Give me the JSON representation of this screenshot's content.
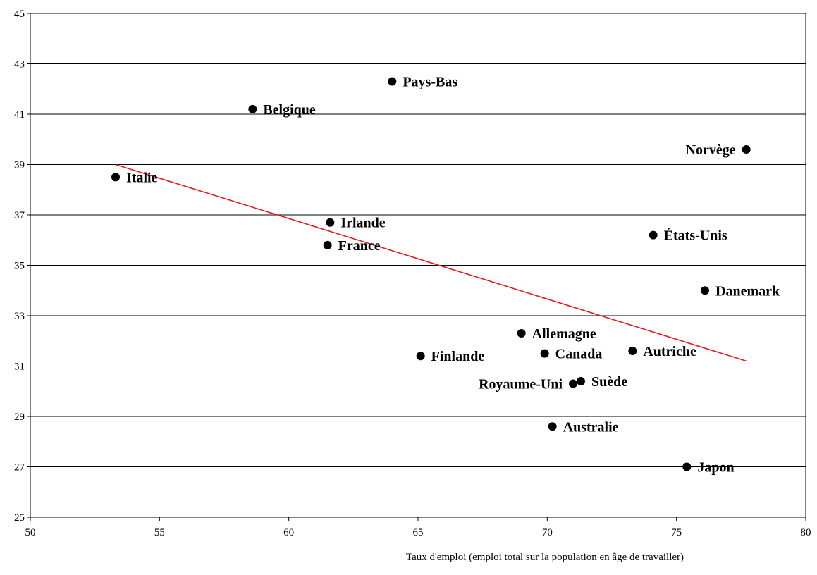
{
  "chart_data": {
    "type": "scatter",
    "title": "",
    "xlabel": "Taux d'emploi (emploi total sur la population en âge de travailler)",
    "ylabel": "",
    "xlim": [
      50,
      80
    ],
    "ylim": [
      25,
      45
    ],
    "xticks": [
      50,
      55,
      60,
      65,
      70,
      75,
      80
    ],
    "yticks": [
      25,
      27,
      29,
      31,
      33,
      35,
      37,
      39,
      41,
      43,
      45
    ],
    "grid": "horizontal",
    "points": [
      {
        "label": "Italie",
        "x": 53.3,
        "y": 38.5,
        "label_side": "right"
      },
      {
        "label": "Belgique",
        "x": 58.6,
        "y": 41.2,
        "label_side": "right"
      },
      {
        "label": "Pays-Bas",
        "x": 64.0,
        "y": 42.3,
        "label_side": "right"
      },
      {
        "label": "Irlande",
        "x": 61.6,
        "y": 36.7,
        "label_side": "right"
      },
      {
        "label": "France",
        "x": 61.5,
        "y": 35.8,
        "label_side": "right"
      },
      {
        "label": "Norvège",
        "x": 77.7,
        "y": 39.6,
        "label_side": "left"
      },
      {
        "label": "États-Unis",
        "x": 74.1,
        "y": 36.2,
        "label_side": "right"
      },
      {
        "label": "Danemark",
        "x": 76.1,
        "y": 34.0,
        "label_side": "right"
      },
      {
        "label": "Allemagne",
        "x": 69.0,
        "y": 32.3,
        "label_side": "right"
      },
      {
        "label": "Canada",
        "x": 69.9,
        "y": 31.5,
        "label_side": "right"
      },
      {
        "label": "Autriche",
        "x": 73.3,
        "y": 31.6,
        "label_side": "right"
      },
      {
        "label": "Finlande",
        "x": 65.1,
        "y": 31.4,
        "label_side": "right"
      },
      {
        "label": "Royaume-Uni",
        "x": 71.0,
        "y": 30.3,
        "label_side": "left"
      },
      {
        "label": "Suède",
        "x": 71.3,
        "y": 30.4,
        "label_side": "right"
      },
      {
        "label": "Australie",
        "x": 70.2,
        "y": 28.6,
        "label_side": "right"
      },
      {
        "label": "Japon",
        "x": 75.4,
        "y": 27.0,
        "label_side": "right"
      }
    ],
    "trendline": {
      "x": [
        53.3,
        77.7
      ],
      "y": [
        39.0,
        31.2
      ],
      "color": "#e31a1c"
    },
    "point_color": "#000000",
    "grid_color": "#000000"
  }
}
